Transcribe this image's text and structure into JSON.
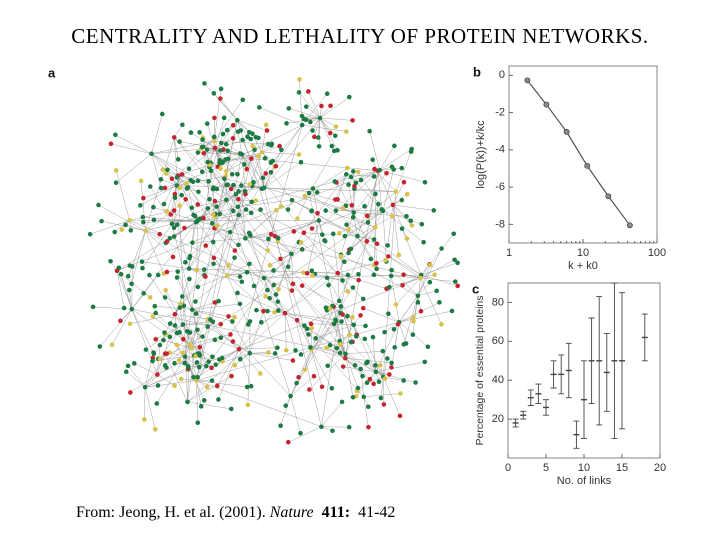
{
  "title": "CENTRALITY AND LETHALITY OF PROTEIN NETWORKS.",
  "network": {
    "panel": "a"
  },
  "citation": {
    "prefix": "From: Jeong, H. et al. (2001).",
    "journal": "Nature",
    "volume": "411:",
    "pages": "41-42"
  },
  "chart_data": [
    {
      "type": "line",
      "panel": "b",
      "xlabel": "k + k0",
      "ylabel": "log(P(k))+k/kc",
      "x": [
        1.77,
        3.2,
        6.0,
        11.4,
        22,
        43
      ],
      "values": [
        -0.27,
        -1.57,
        -3.03,
        -4.86,
        -6.49,
        -8.05
      ],
      "color": "#555555",
      "xscale": "log",
      "xlim": [
        1,
        100
      ],
      "xticks": [
        1,
        10,
        100
      ],
      "ylim": [
        -9,
        0.5
      ],
      "yticks": [
        0,
        -2,
        -4,
        -6,
        -8
      ]
    },
    {
      "type": "errorbar",
      "panel": "c",
      "xlabel": "No. of links",
      "ylabel": "Percentage of essential proteins",
      "x": [
        1,
        2,
        3,
        4,
        5,
        6,
        7,
        8,
        9,
        10,
        11,
        12,
        13,
        14,
        15,
        18
      ],
      "values": [
        18,
        22,
        31,
        33,
        26,
        43,
        43,
        45,
        12,
        30,
        50,
        50,
        44,
        50,
        50,
        62
      ],
      "errors": [
        2,
        2,
        4,
        5,
        4,
        7,
        10,
        14,
        7,
        20,
        22,
        33,
        20,
        40,
        35,
        12
      ],
      "color": "#444444",
      "xlim": [
        0,
        20
      ],
      "xticks": [
        0,
        5,
        10,
        15,
        20
      ],
      "ylim": [
        0,
        90
      ],
      "yticks": [
        20,
        40,
        60,
        80
      ]
    }
  ]
}
